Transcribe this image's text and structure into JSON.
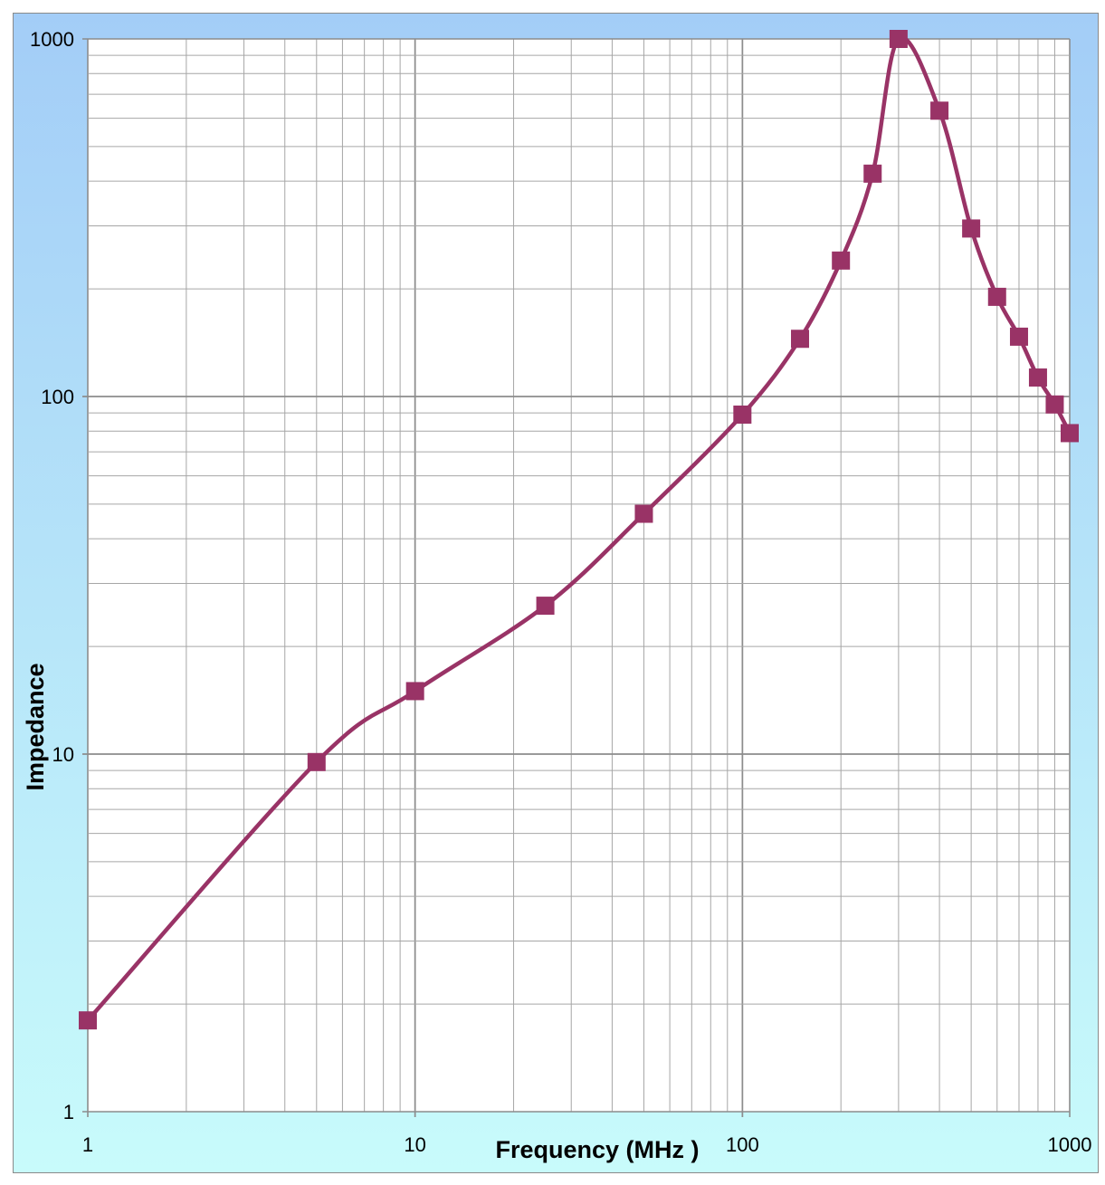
{
  "chart_data": {
    "type": "line",
    "title": "",
    "xlabel": "Frequency (MHz )",
    "ylabel": "Impedance",
    "x_scale": "log",
    "y_scale": "log",
    "xlim": [
      1,
      1000
    ],
    "ylim": [
      1,
      1000
    ],
    "x_ticks": [
      "1",
      "10",
      "100",
      "1000"
    ],
    "y_ticks": [
      "1",
      "10",
      "100",
      "1000"
    ],
    "grid": true,
    "legend": "none",
    "colors": {
      "background_top": "#a3cdf7",
      "background_bottom": "#c8fbfb",
      "grid": "#a6a6a6",
      "grid_major": "#8c8c8c",
      "series": "#993366"
    },
    "series": [
      {
        "x": [
          1,
          5,
          10,
          25,
          50,
          100,
          150,
          200,
          250,
          300,
          400,
          500,
          600,
          700,
          800,
          900,
          1000
        ],
        "y": [
          1.8,
          9.5,
          15,
          26,
          47,
          89,
          145,
          240,
          420,
          1000,
          630,
          295,
          190,
          147,
          113,
          95,
          79
        ]
      }
    ]
  }
}
